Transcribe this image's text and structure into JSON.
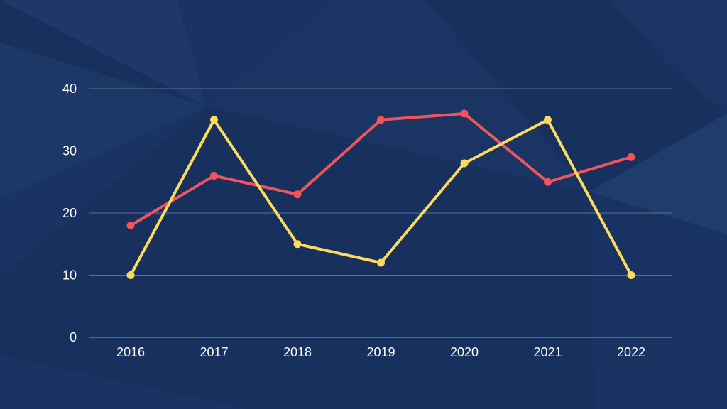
{
  "colors": {
    "background": "#17305e",
    "grid": "#5a7098",
    "axis": "#8fa0bf",
    "tick_text": "#ffffff"
  },
  "chart_data": {
    "type": "line",
    "title": "",
    "xlabel": "",
    "ylabel": "",
    "categories": [
      "2016",
      "2017",
      "2018",
      "2019",
      "2020",
      "2021",
      "2022"
    ],
    "yticks": [
      "0",
      "10",
      "20",
      "30",
      "40"
    ],
    "ylim": [
      0,
      40
    ],
    "grid": true,
    "legend": "none",
    "series": [
      {
        "color": "#f2545b",
        "values": [
          18,
          26,
          23,
          35,
          36,
          25,
          29
        ]
      },
      {
        "color": "#fbdb5c",
        "values": [
          10,
          35,
          15,
          12,
          28,
          35,
          10
        ]
      }
    ]
  }
}
